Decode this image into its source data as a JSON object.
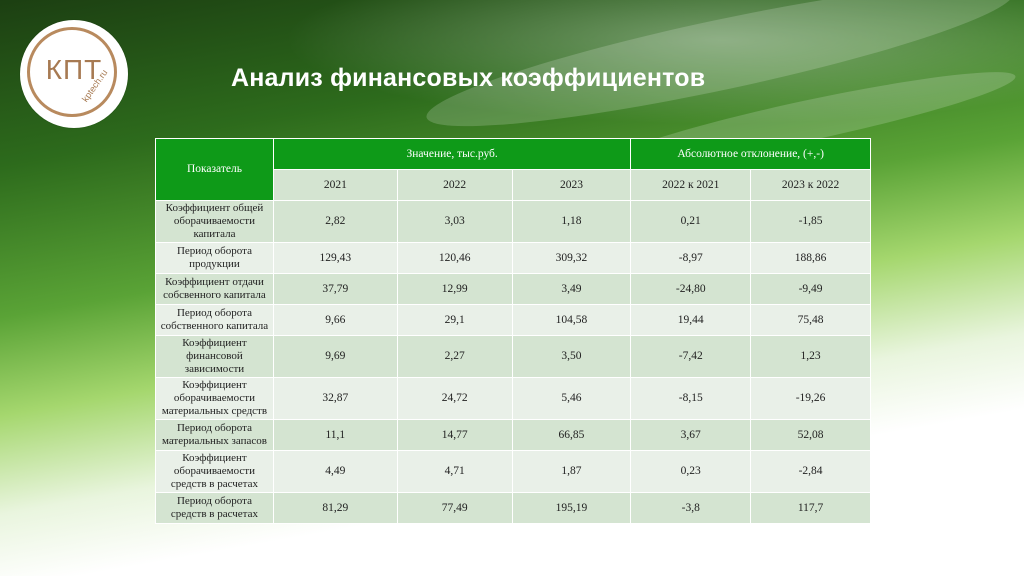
{
  "logo": {
    "text": "КПТ",
    "url": "kptech.ru"
  },
  "title": "Анализ финансовых коэффициентов",
  "table": {
    "header": {
      "indicator": "Показатель",
      "value_group": "Значение, тыс.руб.",
      "deviation_group": "Абсолютное отклонение, (+,-)",
      "years": [
        "2021",
        "2022",
        "2023"
      ],
      "deviations": [
        "2022 к 2021",
        "2023 к 2022"
      ]
    },
    "rows": [
      {
        "name": "Коэффициент общей оборачиваемости капитала",
        "v2021": "2,82",
        "v2022": "3,03",
        "v2023": "1,18",
        "d1": "0,21",
        "d2": "-1,85"
      },
      {
        "name": "Период оборота продукции",
        "v2021": "129,43",
        "v2022": "120,46",
        "v2023": "309,32",
        "d1": "-8,97",
        "d2": "188,86"
      },
      {
        "name": "Коэффициент отдачи собсвенного капитала",
        "v2021": "37,79",
        "v2022": "12,99",
        "v2023": "3,49",
        "d1": "-24,80",
        "d2": "-9,49"
      },
      {
        "name": "Период оборота собственного капитала",
        "v2021": "9,66",
        "v2022": "29,1",
        "v2023": "104,58",
        "d1": "19,44",
        "d2": "75,48"
      },
      {
        "name": "Коэффициент финансовой зависимости",
        "v2021": "9,69",
        "v2022": "2,27",
        "v2023": "3,50",
        "d1": "-7,42",
        "d2": "1,23"
      },
      {
        "name": "Коэффициент оборачиваемости материальных средств",
        "v2021": "32,87",
        "v2022": "24,72",
        "v2023": "5,46",
        "d1": "-8,15",
        "d2": "-19,26"
      },
      {
        "name": "Период оборота материальных запасов",
        "v2021": "11,1",
        "v2022": "14,77",
        "v2023": "66,85",
        "d1": "3,67",
        "d2": "52,08"
      },
      {
        "name": "Коэффициент оборачиваемости средств в расчетах",
        "v2021": "4,49",
        "v2022": "4,71",
        "v2023": "1,87",
        "d1": "0,23",
        "d2": "-2,84"
      },
      {
        "name": "Период оборота средств в расчетах",
        "v2021": "81,29",
        "v2022": "77,49",
        "v2023": "195,19",
        "d1": "-3,8",
        "d2": "117,7"
      }
    ]
  }
}
